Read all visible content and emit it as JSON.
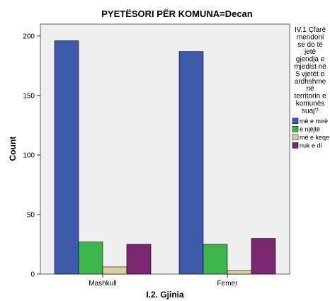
{
  "chart_data": {
    "type": "bar",
    "title": "PYETËSORI PËR KOMUNA=Decan",
    "xlabel": "I.2. Gjinia",
    "ylabel": "Count",
    "categories": [
      "Mashkull",
      "Femer"
    ],
    "ylim": [
      0,
      210
    ],
    "yticks": [
      0,
      50,
      100,
      150,
      200
    ],
    "grid": false,
    "legend": {
      "placement": "right",
      "title_lines": [
        "IV.1 Çfarë",
        "mendoni",
        "se do të",
        "jetë",
        "gjendja e",
        "mjedist në",
        "5 vjetët e",
        "ardhshme",
        "në",
        "territorin e",
        "komunës",
        "suaj?"
      ]
    },
    "series": [
      {
        "name": "më e mirë",
        "color": "#3e58ac",
        "values": [
          196,
          187
        ]
      },
      {
        "name": "e njëjtë",
        "color": "#3cb54a",
        "values": [
          27,
          25
        ]
      },
      {
        "name": "më e keqe",
        "color": "#d8d2a0",
        "values": [
          6,
          3
        ]
      },
      {
        "name": "nuk e di",
        "color": "#7b2670",
        "values": [
          25,
          30
        ]
      }
    ]
  }
}
